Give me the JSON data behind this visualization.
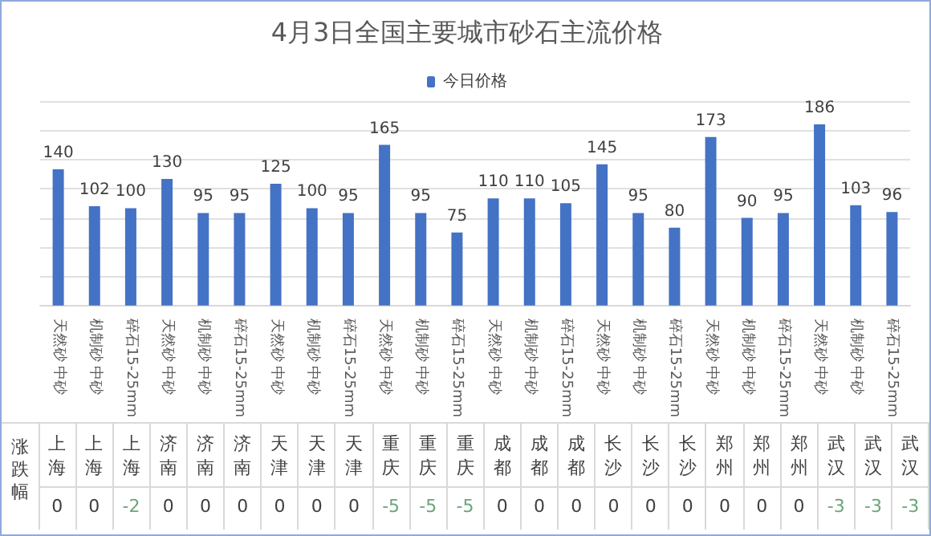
{
  "chart_data": [
    {
      "type": "bar",
      "title": "4月3日全国主要城市砂石主流价格",
      "categories": [
        "天然砂 中砂",
        "机制砂 中砂",
        "碎石15-25mm",
        "天然砂 中砂",
        "机制砂 中砂",
        "碎石15-25mm",
        "天然砂 中砂",
        "机制砂 中砂",
        "碎石15-25mm",
        "天然砂 中砂",
        "机制砂 中砂",
        "碎石15-25mm",
        "天然砂 中砂",
        "机制砂 中砂",
        "碎石15-25mm",
        "天然砂 中砂",
        "机制砂 中砂",
        "碎石15-25mm",
        "天然砂 中砂",
        "机制砂 中砂",
        "碎石15-25mm",
        "天然砂 中砂",
        "机制砂 中砂",
        "碎石15-25mm"
      ],
      "series": [
        {
          "name": "今日价格",
          "color": "#4472c4",
          "values": [
            140,
            102,
            100,
            130,
            95,
            95,
            125,
            100,
            95,
            165,
            95,
            75,
            110,
            110,
            105,
            145,
            95,
            80,
            173,
            90,
            95,
            186,
            103,
            96
          ]
        }
      ],
      "data_labels": true,
      "grid": "y",
      "legend": "top",
      "tick_labels": "x"
    },
    {
      "type": "other",
      "ylabel": "涨跌幅",
      "categories": [
        "上海",
        "上海",
        "上海",
        "济南",
        "济南",
        "济南",
        "天津",
        "天津",
        "天津",
        "重庆",
        "重庆",
        "重庆",
        "成都",
        "成都",
        "成都",
        "长沙",
        "长沙",
        "长沙",
        "郑州",
        "郑州",
        "郑州",
        "武汉",
        "武汉",
        "武汉"
      ],
      "values": [
        0,
        0,
        -2,
        0,
        0,
        0,
        0,
        0,
        0,
        -5,
        -5,
        -5,
        0,
        0,
        0,
        0,
        0,
        0,
        0,
        0,
        0,
        -3,
        -3,
        -3
      ],
      "colors": [
        "#404040",
        "#404040",
        "#6aa57a",
        "#404040",
        "#404040",
        "#404040",
        "#404040",
        "#404040",
        "#404040",
        "#6aa57a",
        "#6aa57a",
        "#6aa57a",
        "#404040",
        "#404040",
        "#404040",
        "#404040",
        "#404040",
        "#404040",
        "#404040",
        "#404040",
        "#404040",
        "#6aa57a",
        "#6aa57a",
        "#6aa57a"
      ],
      "data_labels": true
    }
  ]
}
